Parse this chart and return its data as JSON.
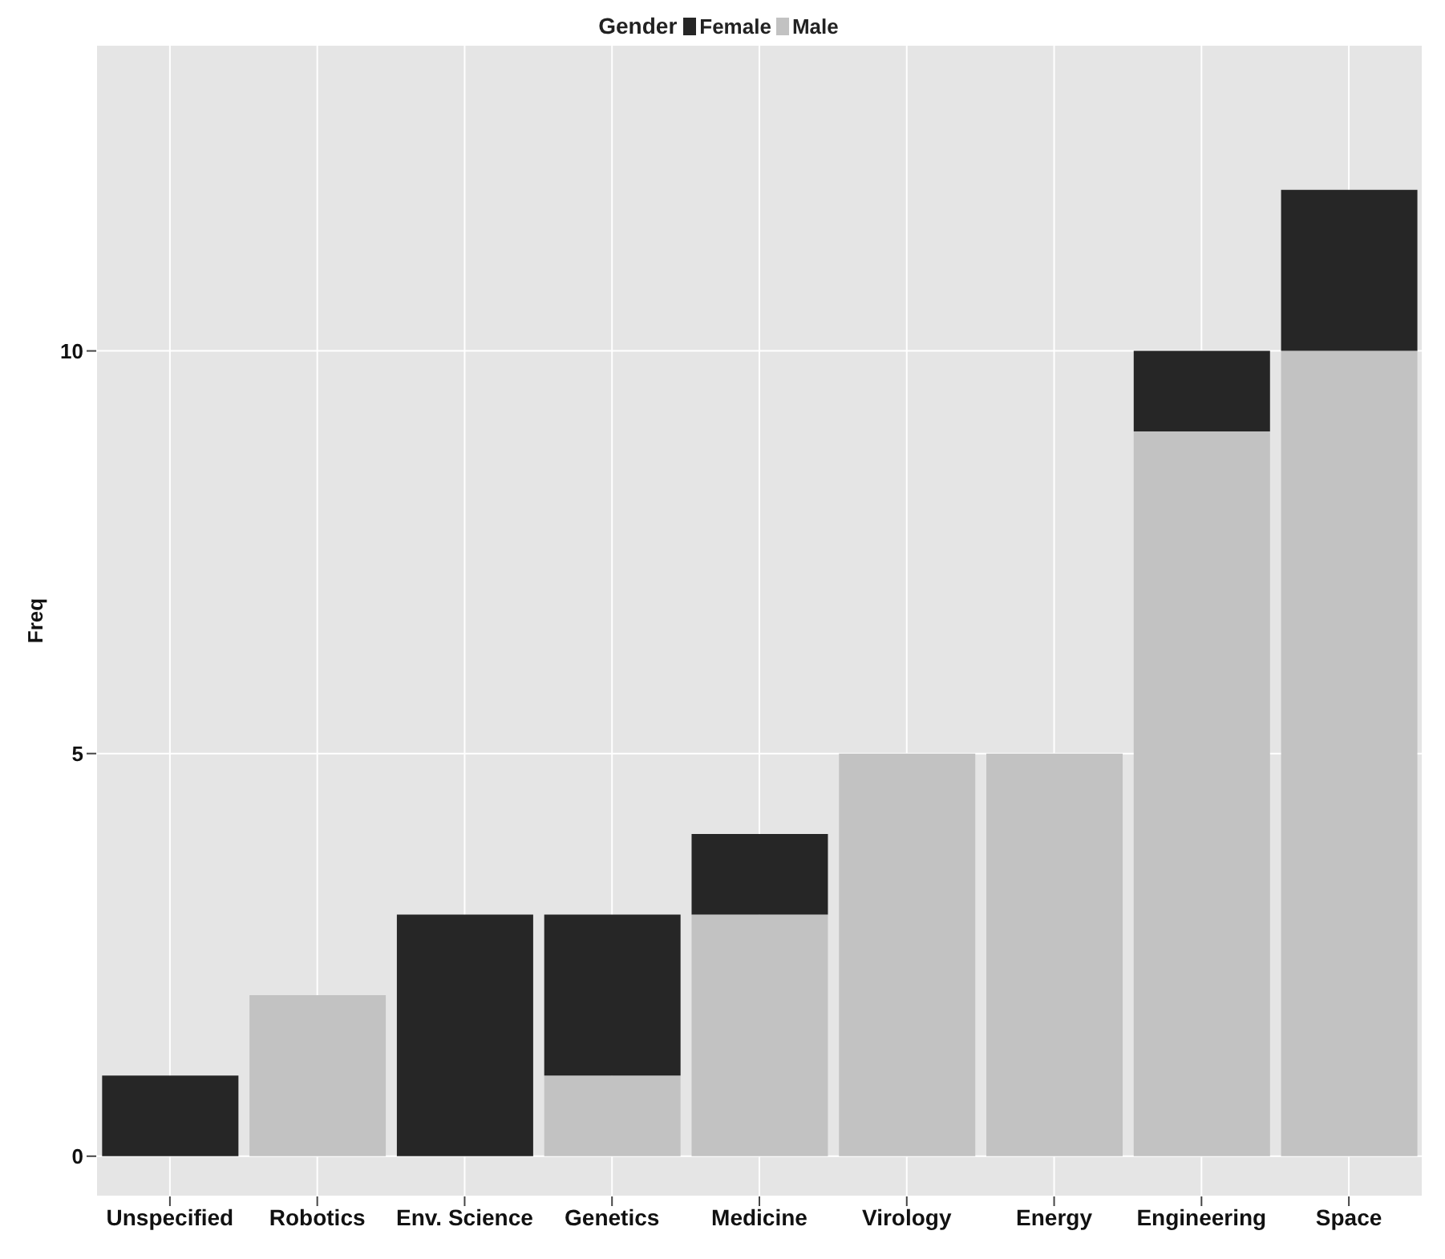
{
  "chart_data": {
    "type": "bar",
    "stacked": true,
    "legend_title": "Gender",
    "ylabel": "Freq",
    "categories": [
      "Unspecified",
      "Robotics",
      "Env. Science",
      "Genetics",
      "Medicine",
      "Virology",
      "Energy",
      "Engineering",
      "Space"
    ],
    "series": [
      {
        "name": "Male",
        "color": "#c2c2c2",
        "values": [
          0,
          2,
          0,
          1,
          3,
          5,
          5,
          9,
          10
        ]
      },
      {
        "name": "Female",
        "color": "#262626",
        "values": [
          1,
          0,
          3,
          2,
          1,
          0,
          0,
          1,
          2
        ]
      }
    ],
    "ylim": [
      -0.5,
      13.8
    ],
    "yticks": [
      0,
      5,
      10
    ],
    "grid": true,
    "legend": "top"
  }
}
